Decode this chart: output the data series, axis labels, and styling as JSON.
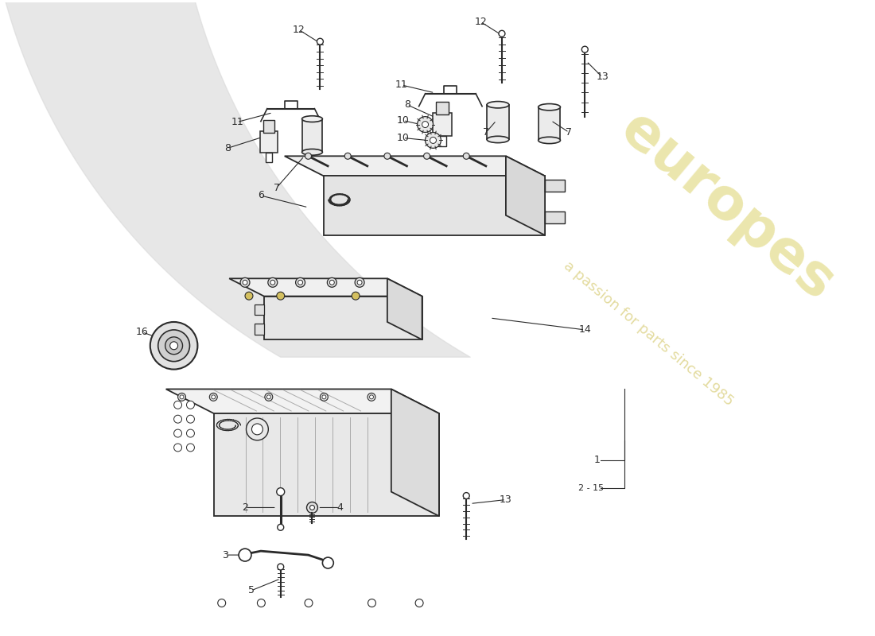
{
  "bg_color": "#ffffff",
  "line_color": "#2a2a2a",
  "watermark_color1": "#d4c84a",
  "watermark_color2": "#c8b840",
  "fig_width": 11.0,
  "fig_height": 8.0,
  "dpi": 100,
  "label_fontsize": 9,
  "watermark_alpha": 0.45,
  "gray_arc_color": "#d8d8d8"
}
